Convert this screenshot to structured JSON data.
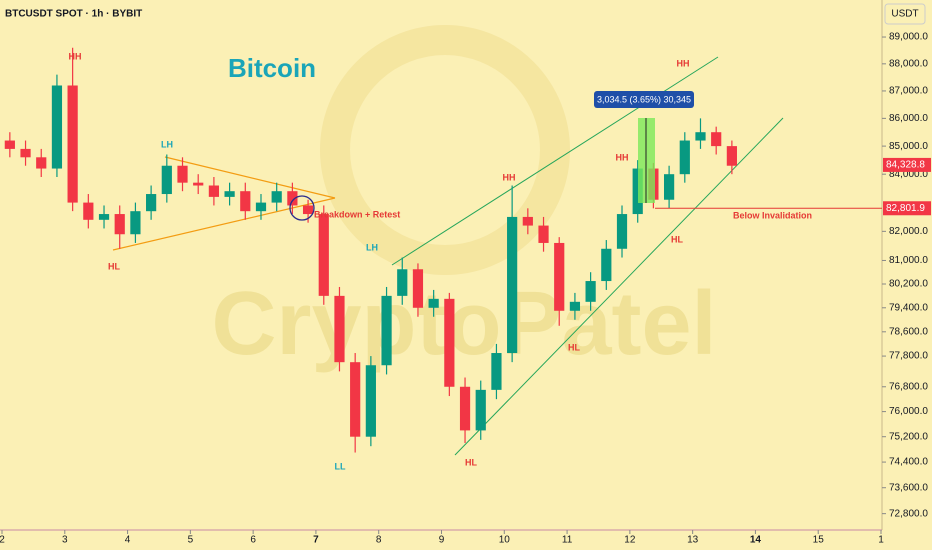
{
  "chart_data": {
    "type": "candlestick",
    "title": "Bitcoin",
    "header": "BTCUSDT SPOT · 1h · BYBIT",
    "currency": "USDT",
    "watermark": "CryptoPatel",
    "log_scale": true,
    "up_color": "#089981",
    "down_color": "#f23645",
    "x": [
      2.125,
      2.375,
      2.625,
      2.875,
      3.125,
      3.375,
      3.625,
      3.875,
      4.125,
      4.375,
      4.625,
      4.875,
      5.125,
      5.375,
      5.625,
      5.875,
      6.125,
      6.375,
      6.625,
      6.875,
      7.125,
      7.375,
      7.625,
      7.875,
      8.125,
      8.375,
      8.625,
      8.875,
      9.125,
      9.375,
      9.625,
      9.875,
      10.125,
      10.375,
      10.625,
      10.875,
      11.125,
      11.375,
      11.625,
      11.875,
      12.125,
      12.375,
      12.625,
      12.875,
      13.125,
      13.375,
      13.625
    ],
    "open": [
      85200,
      84900,
      84600,
      84200,
      87200,
      83000,
      82400,
      82600,
      81900,
      82700,
      83300,
      84300,
      83700,
      83600,
      83200,
      83400,
      82700,
      83000,
      83400,
      82900,
      82600,
      79800,
      77600,
      75200,
      77500,
      79800,
      80700,
      79400,
      79700,
      76800,
      75400,
      76700,
      77900,
      82500,
      82200,
      81600,
      79300,
      79600,
      80300,
      81400,
      82600,
      84200,
      83100,
      84000,
      85200,
      85500,
      85000
    ],
    "high": [
      85500,
      85200,
      84900,
      87600,
      88600,
      83300,
      82900,
      82900,
      83000,
      83600,
      84700,
      84600,
      84000,
      83900,
      83700,
      83700,
      83300,
      83700,
      83700,
      83100,
      82900,
      80100,
      77900,
      77800,
      80100,
      81100,
      80900,
      80000,
      79900,
      77100,
      77000,
      78200,
      83600,
      82800,
      82500,
      81800,
      79900,
      80600,
      81700,
      82900,
      84500,
      84400,
      84300,
      85500,
      86000,
      85700,
      85200
    ],
    "low": [
      84600,
      84300,
      83900,
      83900,
      82700,
      82100,
      82100,
      81400,
      81600,
      82400,
      83000,
      83400,
      83300,
      82900,
      82900,
      82400,
      82400,
      82700,
      82600,
      82300,
      79500,
      77300,
      74700,
      74900,
      77200,
      79500,
      79100,
      79100,
      76500,
      75000,
      75100,
      76400,
      77600,
      81900,
      81300,
      78800,
      79000,
      79300,
      80000,
      81100,
      82300,
      82800,
      82800,
      83700,
      84900,
      84700,
      84000
    ],
    "close": [
      84900,
      84600,
      84200,
      87200,
      83000,
      82400,
      82600,
      81900,
      82700,
      83300,
      84300,
      83700,
      83600,
      83200,
      83400,
      82700,
      83000,
      83400,
      82900,
      82600,
      79800,
      77600,
      75200,
      77500,
      79800,
      80700,
      79400,
      79700,
      76800,
      75400,
      76700,
      77900,
      82500,
      82200,
      81600,
      79300,
      79600,
      80300,
      81400,
      82600,
      84200,
      83100,
      84000,
      85200,
      85500,
      85000,
      84300
    ],
    "xlim": [
      2,
      16
    ],
    "xticks": [
      2,
      3,
      4,
      5,
      6,
      7,
      8,
      9,
      10,
      11,
      12,
      13,
      14,
      15,
      {
        "value": 16,
        "label": "1"
      }
    ],
    "ylim": [
      72300,
      90400
    ],
    "yticks": [
      {
        "value": 89000,
        "label": "89,000.0"
      },
      {
        "value": 88000,
        "label": "88,000.0"
      },
      {
        "value": 87000,
        "label": "87,000.0"
      },
      {
        "value": 86000,
        "label": "86,000.0"
      },
      {
        "value": 85000,
        "label": "85,000.0"
      },
      {
        "value": 84000,
        "label": "84,000.0"
      },
      {
        "value": 82000,
        "label": "82,000.0"
      },
      {
        "value": 81000,
        "label": "81,000.0"
      },
      {
        "value": 80200,
        "label": "80,200.0"
      },
      {
        "value": 79400,
        "label": "79,400.0"
      },
      {
        "value": 78600,
        "label": "78,600.0"
      },
      {
        "value": 77800,
        "label": "77,800.0"
      },
      {
        "value": 76800,
        "label": "76,800.0"
      },
      {
        "value": 76000,
        "label": "76,000.0"
      },
      {
        "value": 75200,
        "label": "75,200.0"
      },
      {
        "value": 74400,
        "label": "74,400.0"
      },
      {
        "value": 73600,
        "label": "73,600.0"
      },
      {
        "value": 72800,
        "label": "72,800.0"
      }
    ],
    "price_lines": [
      {
        "value": 84328.8,
        "label": "84,328.8"
      },
      {
        "value": 82801.9,
        "label": "82,801.9"
      }
    ],
    "measure_label": "3,034.5 (3.65%) 30,345",
    "annotations": [
      "HH",
      "LH",
      "HL",
      "Breakdown + Retest",
      "LH",
      "LL",
      "HH",
      "HL",
      "HL",
      "HH",
      "HH",
      "HL",
      "Below Invalidation"
    ]
  }
}
